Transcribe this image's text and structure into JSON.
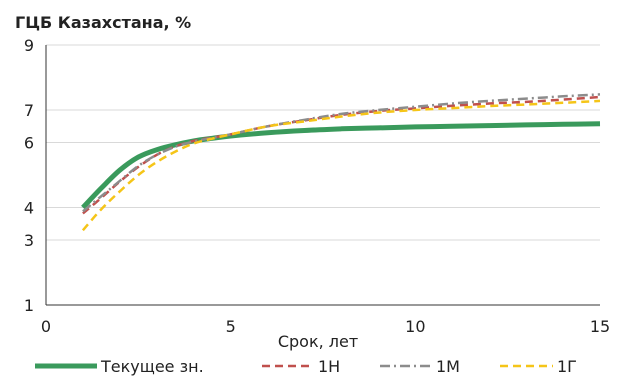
{
  "chart_data": {
    "type": "line",
    "title": "ГЦБ Казахстана, %",
    "xlabel": "Срок, лет",
    "ylabel": "",
    "xlim": [
      0,
      15
    ],
    "ylim": [
      1,
      9
    ],
    "xticks": [
      "0",
      "5",
      "10",
      "15"
    ],
    "yticks": [
      "1",
      "3",
      "4",
      "6",
      "7",
      "9"
    ],
    "grid": "horizontal",
    "legend_position": "bottom",
    "series": [
      {
        "name": "Текущее зн.",
        "color": "#3a9a5c",
        "style": "solid",
        "x": [
          1,
          1.5,
          2,
          2.5,
          3,
          3.5,
          4,
          4.5,
          5,
          6,
          7,
          8,
          9,
          10,
          11,
          12,
          13,
          14,
          15
        ],
        "y": [
          4.0,
          4.6,
          5.15,
          5.55,
          5.78,
          5.93,
          6.05,
          6.13,
          6.2,
          6.3,
          6.37,
          6.42,
          6.45,
          6.48,
          6.5,
          6.52,
          6.54,
          6.56,
          6.58
        ]
      },
      {
        "name": "1Н",
        "color": "#c0504d",
        "style": "dashed",
        "x": [
          1,
          1.5,
          2,
          2.5,
          3,
          3.5,
          4,
          4.5,
          5,
          6,
          7,
          8,
          9,
          10,
          11,
          12,
          13,
          14,
          15
        ],
        "y": [
          3.82,
          4.3,
          4.8,
          5.25,
          5.62,
          5.88,
          6.05,
          6.15,
          6.25,
          6.5,
          6.68,
          6.85,
          6.97,
          7.05,
          7.13,
          7.2,
          7.25,
          7.32,
          7.4
        ]
      },
      {
        "name": "1М",
        "color": "#8c8c8c",
        "style": "dashdot",
        "x": [
          1,
          1.5,
          2,
          2.5,
          3,
          3.5,
          4,
          4.5,
          5,
          6,
          7,
          8,
          9,
          10,
          11,
          12,
          13,
          14,
          15
        ],
        "y": [
          3.88,
          4.35,
          4.82,
          5.28,
          5.62,
          5.87,
          6.03,
          6.14,
          6.25,
          6.5,
          6.7,
          6.88,
          7.0,
          7.1,
          7.2,
          7.28,
          7.35,
          7.42,
          7.48
        ]
      },
      {
        "name": "1Г",
        "color": "#f5c518",
        "style": "dashed",
        "x": [
          1,
          1.5,
          2,
          2.5,
          3,
          3.5,
          4,
          4.5,
          5,
          6,
          7,
          8,
          9,
          10,
          11,
          12,
          13,
          14,
          15
        ],
        "y": [
          3.3,
          3.95,
          4.5,
          5.0,
          5.4,
          5.72,
          5.97,
          6.12,
          6.25,
          6.5,
          6.65,
          6.8,
          6.92,
          7.0,
          7.06,
          7.12,
          7.17,
          7.22,
          7.28
        ]
      }
    ]
  }
}
